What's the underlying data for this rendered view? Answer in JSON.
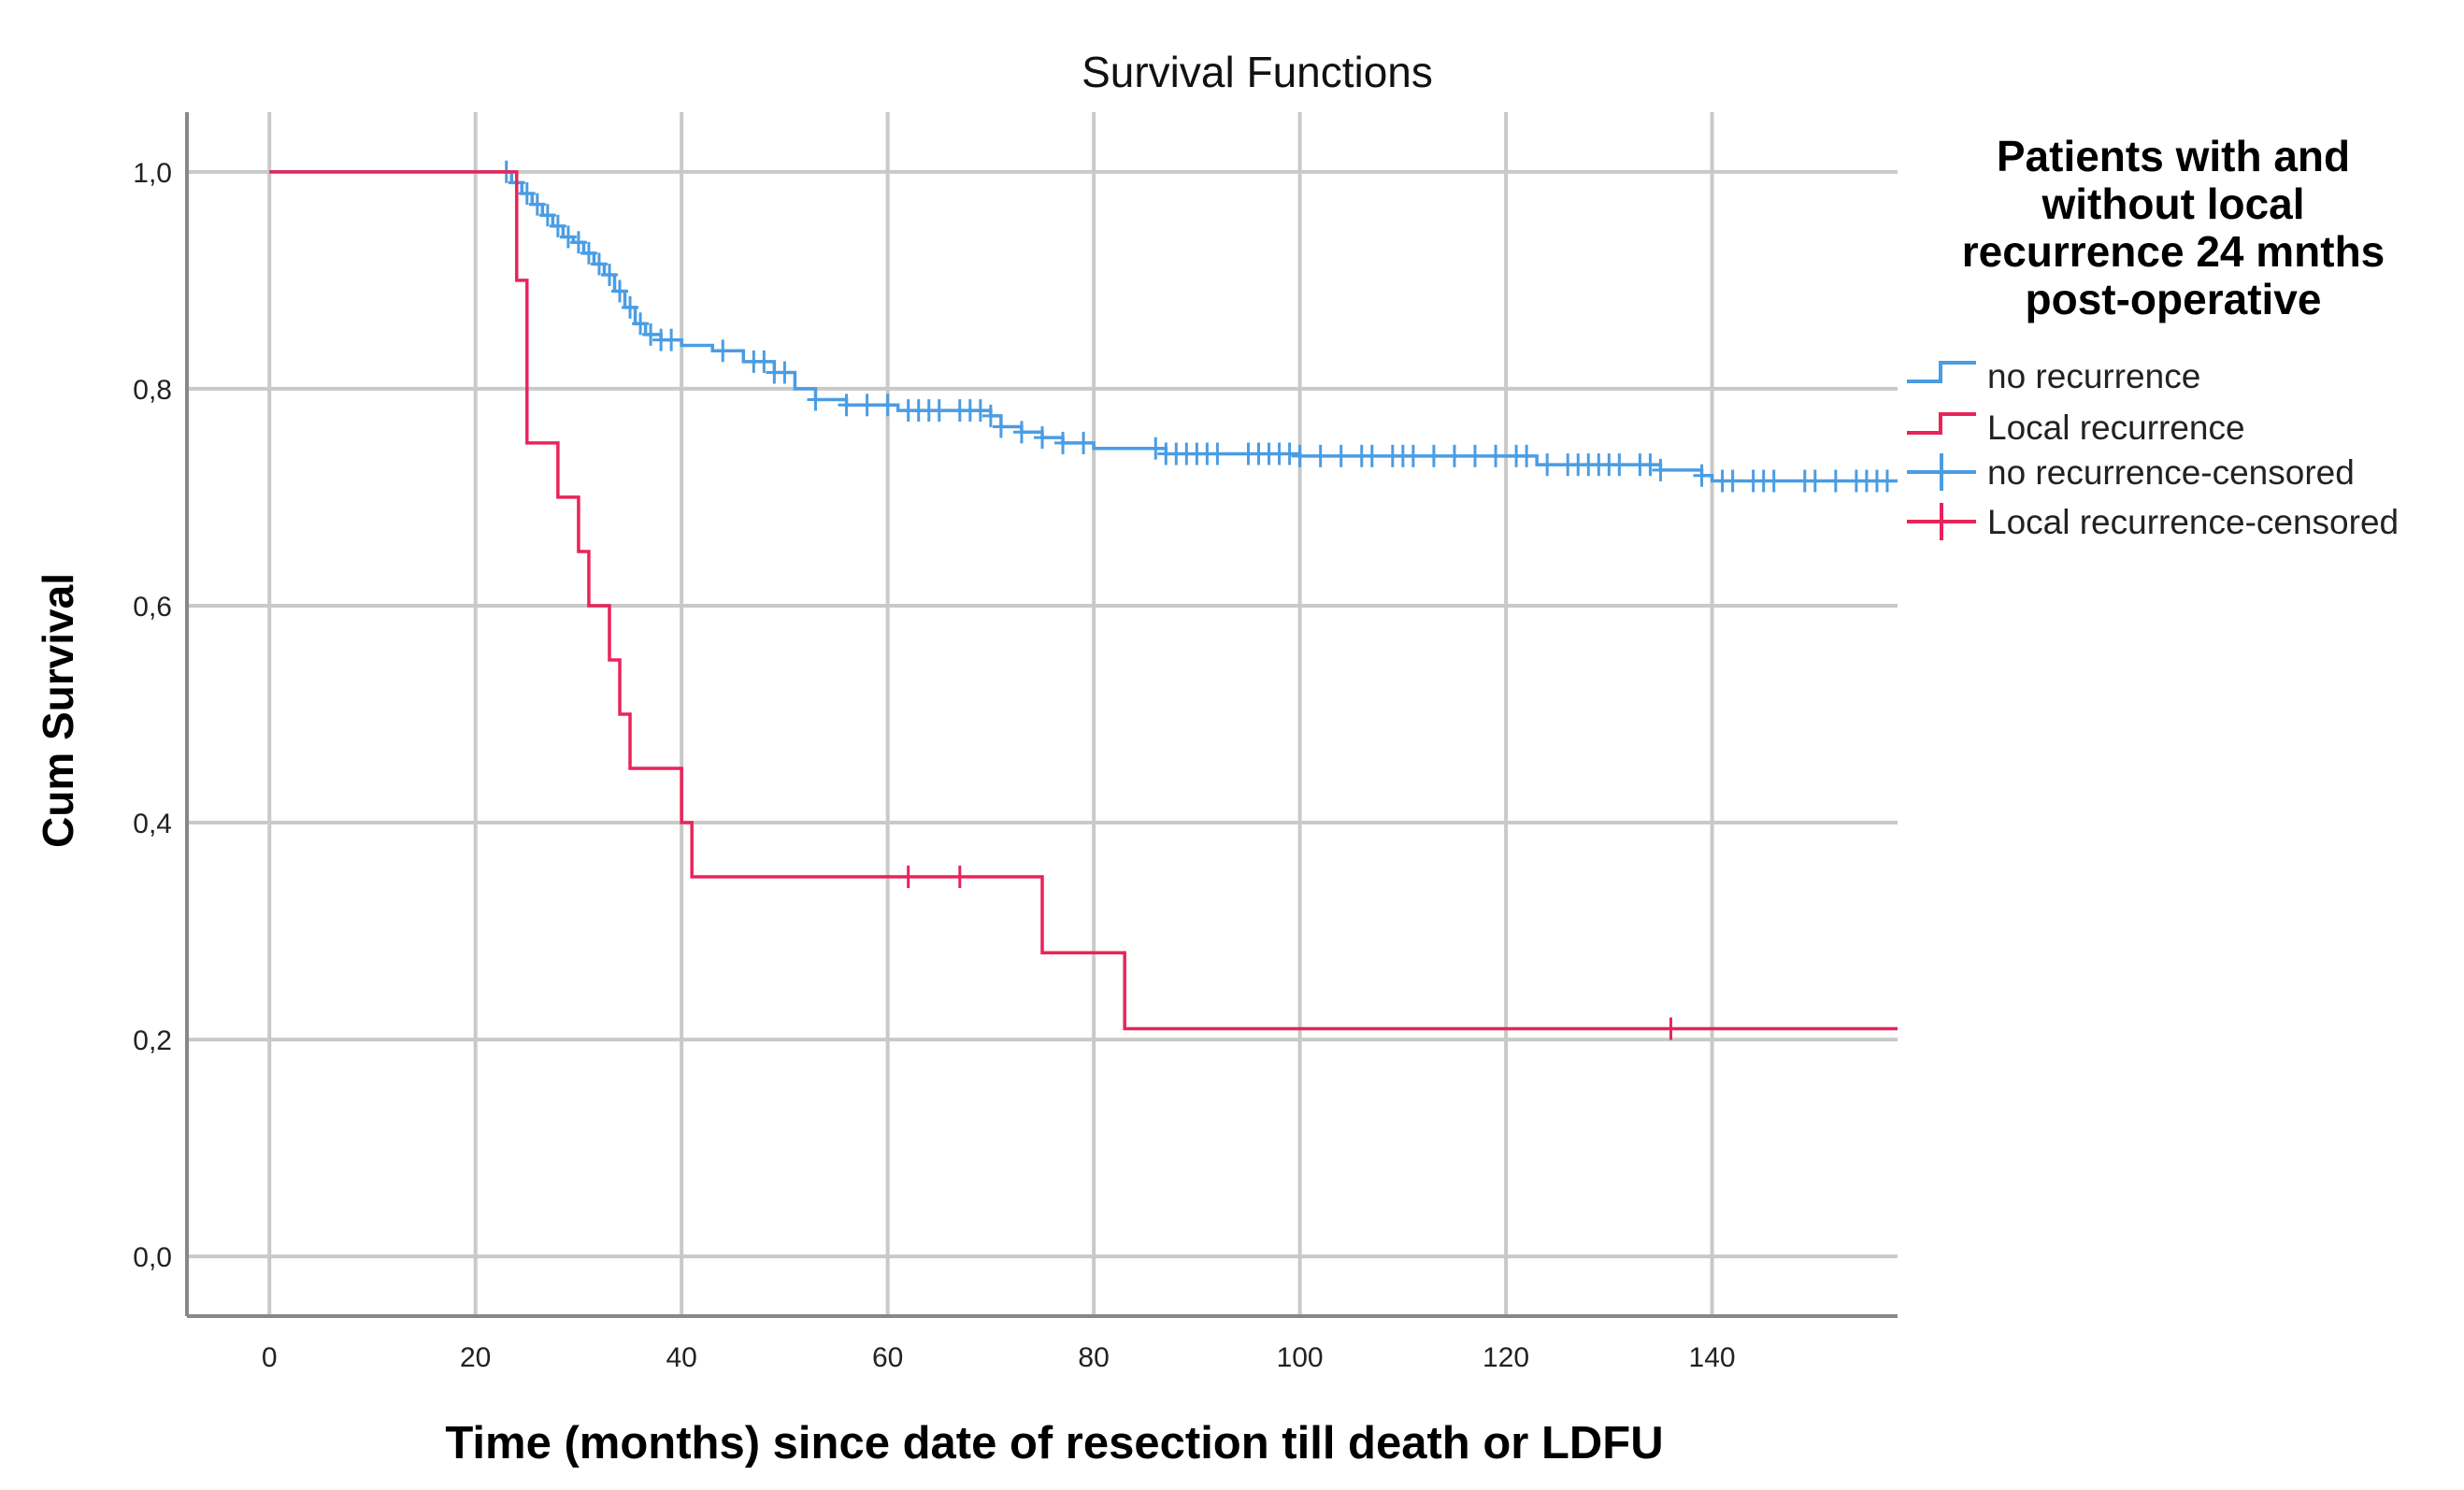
{
  "chart_data": {
    "type": "line",
    "subtype": "kaplan-meier step",
    "title": "Survival Functions",
    "xlabel": "Time (months) since date of resection till death or LDFU",
    "ylabel": "Cum Survival",
    "xlim": [
      -8,
      158
    ],
    "ylim": [
      -0.055,
      1.055
    ],
    "x_ticks": [
      0,
      20,
      40,
      60,
      80,
      100,
      120,
      140
    ],
    "y_ticks": [
      0.0,
      0.2,
      0.4,
      0.6,
      0.8,
      1.0
    ],
    "x_tick_labels": [
      "0",
      "20",
      "40",
      "60",
      "80",
      "100",
      "120",
      "140"
    ],
    "y_tick_labels": [
      "0,0",
      "0,2",
      "0,4",
      "0,6",
      "0,8",
      "1,0"
    ],
    "grid": true,
    "legend": {
      "title": [
        "Patients with and",
        "without local",
        "recurrence 24 mnths",
        "post-operative"
      ],
      "placement": "right",
      "entries": [
        "no recurrence",
        "Local recurrence",
        "no recurrence-censored",
        "Local recurrence-censored"
      ]
    },
    "series": [
      {
        "name": "no recurrence",
        "color": "#4a9de3",
        "steps": [
          [
            0,
            1.0
          ],
          [
            23,
            1.0
          ],
          [
            23.5,
            0.99
          ],
          [
            24.5,
            0.98
          ],
          [
            25.5,
            0.97
          ],
          [
            26.5,
            0.96
          ],
          [
            27.5,
            0.95
          ],
          [
            28.5,
            0.94
          ],
          [
            29.5,
            0.935
          ],
          [
            30.5,
            0.925
          ],
          [
            31.5,
            0.915
          ],
          [
            32.5,
            0.905
          ],
          [
            33.5,
            0.89
          ],
          [
            34.5,
            0.875
          ],
          [
            35.5,
            0.86
          ],
          [
            36.5,
            0.85
          ],
          [
            38,
            0.845
          ],
          [
            40,
            0.84
          ],
          [
            43,
            0.835
          ],
          [
            46,
            0.825
          ],
          [
            49,
            0.815
          ],
          [
            51,
            0.8
          ],
          [
            53,
            0.79
          ],
          [
            56,
            0.785
          ],
          [
            61,
            0.78
          ],
          [
            70,
            0.775
          ],
          [
            71,
            0.765
          ],
          [
            73,
            0.76
          ],
          [
            75,
            0.755
          ],
          [
            77,
            0.75
          ],
          [
            80,
            0.745
          ],
          [
            87,
            0.74
          ],
          [
            100,
            0.738
          ],
          [
            123,
            0.73
          ],
          [
            135,
            0.725
          ],
          [
            139,
            0.72
          ],
          [
            140,
            0.715
          ],
          [
            158,
            0.715
          ]
        ],
        "censored": [
          23,
          24,
          25,
          26,
          27,
          28,
          29,
          30,
          31,
          32,
          33,
          34,
          35,
          36,
          37,
          38,
          39,
          44,
          47,
          48,
          49,
          50,
          53,
          56,
          58,
          60,
          62,
          63,
          64,
          65,
          67,
          68,
          69,
          70,
          71,
          73,
          75,
          77,
          79,
          86,
          87,
          88,
          89,
          90,
          91,
          92,
          95,
          96,
          97,
          98,
          99,
          100,
          102,
          104,
          106,
          107,
          109,
          110,
          111,
          113,
          115,
          117,
          119,
          121,
          122,
          124,
          126,
          127,
          128,
          129,
          130,
          131,
          133,
          134,
          135,
          139,
          141,
          142,
          144,
          145,
          146,
          149,
          150,
          152,
          154,
          155,
          156,
          157
        ]
      },
      {
        "name": "Local recurrence",
        "color": "#e8245a",
        "steps": [
          [
            0,
            1.0
          ],
          [
            24,
            1.0
          ],
          [
            24,
            0.9
          ],
          [
            25,
            0.9
          ],
          [
            25,
            0.75
          ],
          [
            28,
            0.75
          ],
          [
            28,
            0.7
          ],
          [
            30,
            0.7
          ],
          [
            30,
            0.65
          ],
          [
            31,
            0.65
          ],
          [
            31,
            0.6
          ],
          [
            33,
            0.6
          ],
          [
            33,
            0.55
          ],
          [
            34,
            0.55
          ],
          [
            34,
            0.5
          ],
          [
            35,
            0.5
          ],
          [
            35,
            0.45
          ],
          [
            40,
            0.45
          ],
          [
            40,
            0.4
          ],
          [
            41,
            0.4
          ],
          [
            41,
            0.35
          ],
          [
            75,
            0.35
          ],
          [
            75,
            0.28
          ],
          [
            83,
            0.28
          ],
          [
            83,
            0.21
          ],
          [
            158,
            0.21
          ]
        ],
        "censored": [
          62,
          67,
          136
        ]
      }
    ]
  }
}
